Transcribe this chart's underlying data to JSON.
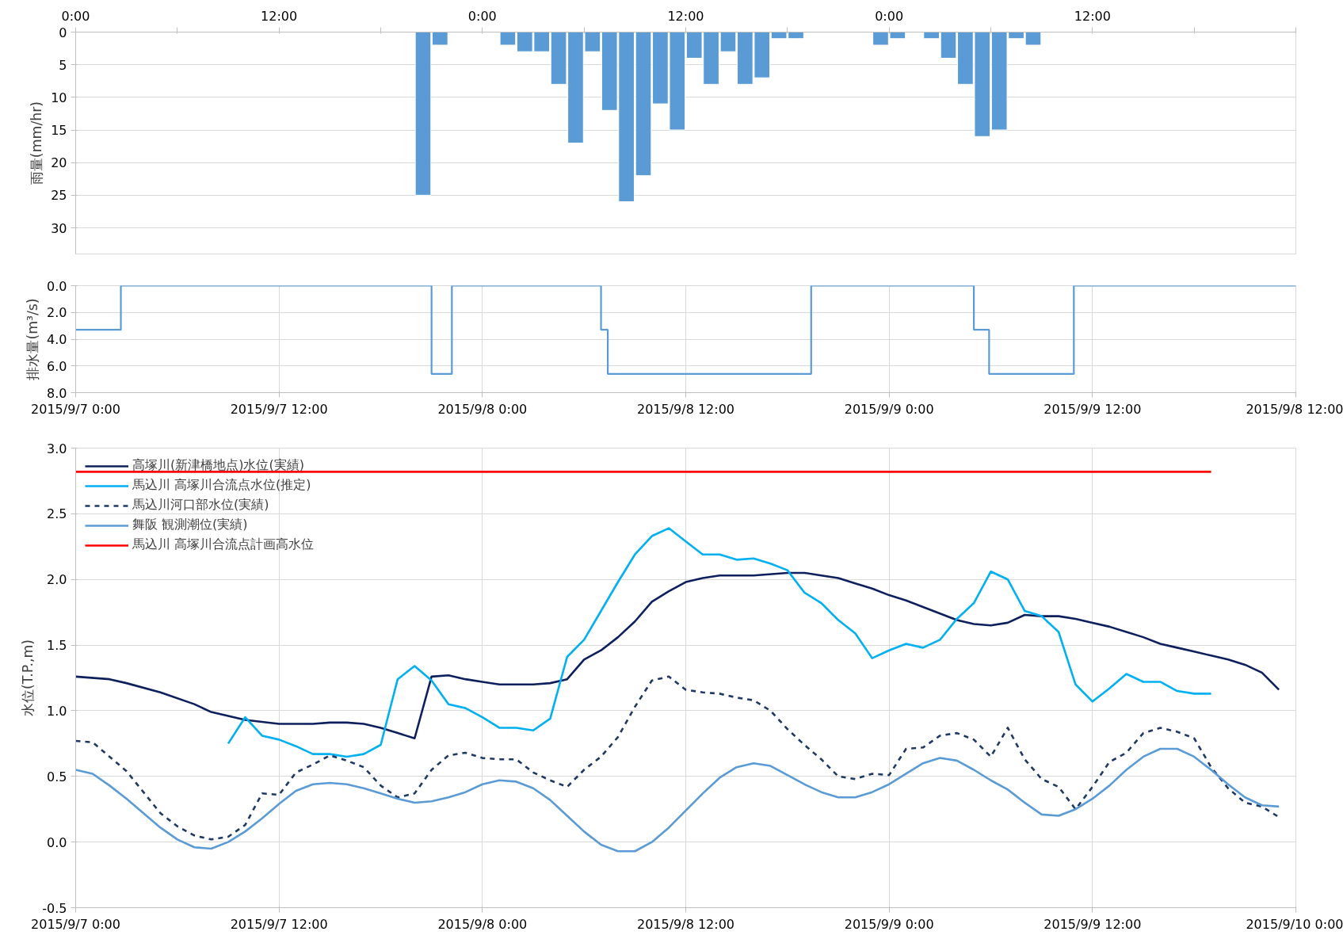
{
  "chart_data": [
    {
      "type": "bar",
      "ylabel": "雨量(mm/hr)",
      "color": "#5b9bd5",
      "tick_labels": "y",
      "xlim": [
        "2015-09-07T00:00",
        "2015-09-10T00:00"
      ],
      "x": [
        "2015-09-07T20:30",
        "2015-09-07T21:30",
        "2015-09-08T01:30",
        "2015-09-08T02:30",
        "2015-09-08T03:30",
        "2015-09-08T04:30",
        "2015-09-08T05:30",
        "2015-09-08T06:30",
        "2015-09-08T07:30",
        "2015-09-08T08:30",
        "2015-09-08T09:30",
        "2015-09-08T10:30",
        "2015-09-08T11:30",
        "2015-09-08T12:30",
        "2015-09-08T13:30",
        "2015-09-08T14:30",
        "2015-09-08T15:30",
        "2015-09-08T16:30",
        "2015-09-08T17:30",
        "2015-09-08T18:30",
        "2015-09-08T23:30",
        "2015-09-09T00:30",
        "2015-09-09T02:30",
        "2015-09-09T03:30",
        "2015-09-09T04:30",
        "2015-09-09T05:30",
        "2015-09-09T06:30",
        "2015-09-09T07:30",
        "2015-09-09T08:30"
      ],
      "values": [
        25,
        2,
        2,
        3,
        3,
        8,
        17,
        3,
        12,
        26,
        22,
        11,
        15,
        4,
        8,
        3,
        8,
        7,
        1,
        1,
        2,
        1,
        1,
        4,
        8,
        16,
        15,
        1,
        2
      ],
      "x2lim": [
        "2015-09-07T00:00",
        "2015-09-10T00:00"
      ],
      "ylim": [
        34,
        0
      ],
      "yticks": [
        0,
        5,
        10,
        15,
        20,
        25,
        30
      ],
      "x2ticks": [
        {
          "value": "2015-09-07T00:00",
          "label": "0:00"
        },
        {
          "value": "2015-09-07T06:00",
          "label": null
        },
        {
          "value": "2015-09-07T12:00",
          "label": "12:00"
        },
        {
          "value": "2015-09-07T18:00",
          "label": null
        },
        {
          "value": "2015-09-08T00:00",
          "label": "0:00"
        },
        {
          "value": "2015-09-08T06:00",
          "label": null
        },
        {
          "value": "2015-09-08T12:00",
          "label": "12:00"
        },
        {
          "value": "2015-09-08T18:00",
          "label": null
        },
        {
          "value": "2015-09-09T00:00",
          "label": "0:00"
        },
        {
          "value": "2015-09-09T06:00",
          "label": null
        },
        {
          "value": "2015-09-09T12:00",
          "label": "12:00"
        },
        {
          "value": "2015-09-09T18:00",
          "label": null
        },
        {
          "value": "2015-09-10T00:00",
          "label": null
        }
      ],
      "grid": "y"
    },
    {
      "type": "step",
      "ylabel": "排水量(m³/s)",
      "color": "#5b9bd5",
      "x": [
        "2015-09-07T00:00",
        "2015-09-07T02:40",
        "2015-09-07T21:00",
        "2015-09-07T22:12",
        "2015-09-08T07:00",
        "2015-09-08T07:24",
        "2015-09-08T19:24",
        "2015-09-09T05:00",
        "2015-09-09T05:54",
        "2015-09-09T10:54",
        "2015-09-10T00:00"
      ],
      "values": [
        3.3,
        0,
        6.6,
        0,
        3.3,
        6.6,
        0,
        3.3,
        6.6,
        0,
        0
      ],
      "xlim": [
        "2015-09-07T00:00",
        "2015-09-10T00:00"
      ],
      "ylim": [
        8,
        0
      ],
      "yticks": [
        {
          "value": 0,
          "label": "0.0"
        },
        {
          "value": 2,
          "label": "2.0"
        },
        {
          "value": 4,
          "label": "4.0"
        },
        {
          "value": 6,
          "label": "6.0"
        },
        {
          "value": 8,
          "label": "8.0"
        }
      ],
      "xticks": [
        {
          "value": "2015-09-07T00:00",
          "label": "2015/9/7 0:00"
        },
        {
          "value": "2015-09-07T12:00",
          "label": "2015/9/7 12:00"
        },
        {
          "value": "2015-09-08T00:00",
          "label": "2015/9/8 0:00"
        },
        {
          "value": "2015-09-08T12:00",
          "label": "2015/9/8 12:00"
        },
        {
          "value": "2015-09-09T00:00",
          "label": "2015/9/9 0:00"
        },
        {
          "value": "2015-09-09T12:00",
          "label": "2015/9/9 12:00"
        },
        {
          "value": "2015-09-10T00:00",
          "label": "2015/9/8 12:00"
        }
      ],
      "grid": true
    },
    {
      "type": "line",
      "ylabel": "水位(T.P.,m)",
      "xlim": [
        "2015-09-07T00:00",
        "2015-09-10T00:00"
      ],
      "ylim": [
        -0.5,
        3.0
      ],
      "yticks": [
        {
          "value": -0.5,
          "label": "-0.5"
        },
        {
          "value": 0,
          "label": "0.0"
        },
        {
          "value": 0.5,
          "label": "0.5"
        },
        {
          "value": 1,
          "label": "1.0"
        },
        {
          "value": 1.5,
          "label": "1.5"
        },
        {
          "value": 2,
          "label": "2.0"
        },
        {
          "value": 2.5,
          "label": "2.5"
        },
        {
          "value": 3,
          "label": "3.0"
        }
      ],
      "xticks": [
        {
          "value": "2015-09-07T00:00",
          "label": "2015/9/7 0:00"
        },
        {
          "value": "2015-09-07T12:00",
          "label": "2015/9/7 12:00"
        },
        {
          "value": "2015-09-08T00:00",
          "label": "2015/9/8 0:00"
        },
        {
          "value": "2015-09-08T12:00",
          "label": "2015/9/8 12:00"
        },
        {
          "value": "2015-09-09T00:00",
          "label": "2015/9/9 0:00"
        },
        {
          "value": "2015-09-09T12:00",
          "label": "2015/9/9 12:00"
        },
        {
          "value": "2015-09-10T00:00",
          "label": "2015/9/10 0:00"
        }
      ],
      "grid": true,
      "legend": "top left",
      "series": [
        {
          "name": "高塚川(新津橋地点)水位(実績)",
          "color": "#0d1f5c",
          "x": [
            "2015-09-07T00:00",
            "2015-09-07T02:00",
            "2015-09-07T03:00",
            "2015-09-07T05:00",
            "2015-09-07T07:00",
            "2015-09-07T08:00",
            "2015-09-07T10:00",
            "2015-09-07T12:00",
            "2015-09-07T14:00",
            "2015-09-07T15:00",
            "2015-09-07T16:00",
            "2015-09-07T17:00",
            "2015-09-07T18:00",
            "2015-09-07T19:00",
            "2015-09-07T20:00",
            "2015-09-07T21:00",
            "2015-09-07T22:00",
            "2015-09-07T23:00",
            "2015-09-08T00:00",
            "2015-09-08T01:00",
            "2015-09-08T03:00",
            "2015-09-08T04:00",
            "2015-09-08T05:00",
            "2015-09-08T06:00",
            "2015-09-08T07:00",
            "2015-09-08T08:00",
            "2015-09-08T09:00",
            "2015-09-08T10:00",
            "2015-09-08T11:00",
            "2015-09-08T12:00",
            "2015-09-08T13:00",
            "2015-09-08T14:00",
            "2015-09-08T16:00",
            "2015-09-08T18:00",
            "2015-09-08T19:00",
            "2015-09-08T20:00",
            "2015-09-08T21:00",
            "2015-09-08T22:00",
            "2015-09-08T23:00",
            "2015-09-09T00:00",
            "2015-09-09T01:00",
            "2015-09-09T02:00",
            "2015-09-09T03:00",
            "2015-09-09T04:00",
            "2015-09-09T05:00",
            "2015-09-09T06:00",
            "2015-09-09T07:00",
            "2015-09-09T08:00",
            "2015-09-09T09:00",
            "2015-09-09T10:00",
            "2015-09-09T11:00",
            "2015-09-09T12:00",
            "2015-09-09T13:00",
            "2015-09-09T14:00",
            "2015-09-09T15:00",
            "2015-09-09T16:00",
            "2015-09-09T17:00",
            "2015-09-09T18:00",
            "2015-09-09T19:00",
            "2015-09-09T20:00",
            "2015-09-09T21:00",
            "2015-09-09T22:00",
            "2015-09-09T23:00"
          ],
          "values": [
            1.26,
            1.24,
            1.21,
            1.14,
            1.05,
            0.99,
            0.93,
            0.9,
            0.9,
            0.91,
            0.91,
            0.9,
            0.87,
            0.83,
            0.79,
            1.26,
            1.27,
            1.24,
            1.22,
            1.2,
            1.2,
            1.21,
            1.24,
            1.39,
            1.46,
            1.56,
            1.68,
            1.83,
            1.91,
            1.98,
            2.01,
            2.03,
            2.03,
            2.05,
            2.05,
            2.03,
            2.01,
            1.97,
            1.93,
            1.88,
            1.84,
            1.79,
            1.74,
            1.69,
            1.66,
            1.65,
            1.67,
            1.73,
            1.72,
            1.72,
            1.7,
            1.67,
            1.64,
            1.6,
            1.56,
            1.51,
            1.48,
            1.45,
            1.42,
            1.39,
            1.35,
            1.29,
            1.16
          ]
        },
        {
          "name": "馬込川 高塚川合流点水位(推定)",
          "color": "#00b0f0",
          "x": [
            "2015-09-07T09:00",
            "2015-09-07T10:00",
            "2015-09-07T11:00",
            "2015-09-07T12:00",
            "2015-09-07T13:00",
            "2015-09-07T14:00",
            "2015-09-07T15:00",
            "2015-09-07T16:00",
            "2015-09-07T17:00",
            "2015-09-07T18:00",
            "2015-09-07T19:00",
            "2015-09-07T20:00",
            "2015-09-07T21:00",
            "2015-09-07T22:00",
            "2015-09-07T23:00",
            "2015-09-08T00:00",
            "2015-09-08T01:00",
            "2015-09-08T02:00",
            "2015-09-08T03:00",
            "2015-09-08T04:00",
            "2015-09-08T05:00",
            "2015-09-08T06:00",
            "2015-09-08T07:00",
            "2015-09-08T08:00",
            "2015-09-08T09:00",
            "2015-09-08T10:00",
            "2015-09-08T11:00",
            "2015-09-08T12:00",
            "2015-09-08T13:00",
            "2015-09-08T14:00",
            "2015-09-08T15:00",
            "2015-09-08T16:00",
            "2015-09-08T17:00",
            "2015-09-08T18:00",
            "2015-09-08T19:00",
            "2015-09-08T20:00",
            "2015-09-08T21:00",
            "2015-09-08T22:00",
            "2015-09-08T23:00",
            "2015-09-09T00:00",
            "2015-09-09T01:00",
            "2015-09-09T02:00",
            "2015-09-09T03:00",
            "2015-09-09T04:00",
            "2015-09-09T05:00",
            "2015-09-09T06:00",
            "2015-09-09T07:00",
            "2015-09-09T08:00",
            "2015-09-09T09:00",
            "2015-09-09T10:00",
            "2015-09-09T11:00",
            "2015-09-09T12:00",
            "2015-09-09T13:00",
            "2015-09-09T14:00",
            "2015-09-09T15:00",
            "2015-09-09T16:00",
            "2015-09-09T17:00",
            "2015-09-09T18:00",
            "2015-09-09T19:00"
          ],
          "values": [
            0.75,
            0.95,
            0.81,
            0.78,
            0.73,
            0.67,
            0.67,
            0.65,
            0.67,
            0.74,
            1.24,
            1.34,
            1.23,
            1.05,
            1.02,
            0.95,
            0.87,
            0.87,
            0.85,
            0.94,
            1.41,
            1.54,
            1.76,
            1.98,
            2.19,
            2.33,
            2.39,
            2.29,
            2.19,
            2.19,
            2.15,
            2.16,
            2.12,
            2.07,
            1.9,
            1.82,
            1.69,
            1.59,
            1.4,
            1.46,
            1.51,
            1.48,
            1.54,
            1.7,
            1.82,
            2.06,
            2.0,
            1.76,
            1.72,
            1.6,
            1.2,
            1.07,
            1.17,
            1.28,
            1.22,
            1.22,
            1.15,
            1.13,
            1.13
          ]
        },
        {
          "name": "馬込川河口部水位(実績)",
          "color": "#1f3864",
          "line_style": "dashed",
          "x": [
            "2015-09-07T00:00",
            "2015-09-07T01:00",
            "2015-09-07T02:00",
            "2015-09-07T03:00",
            "2015-09-07T04:00",
            "2015-09-07T05:00",
            "2015-09-07T06:00",
            "2015-09-07T07:00",
            "2015-09-07T08:00",
            "2015-09-07T09:00",
            "2015-09-07T10:00",
            "2015-09-07T11:00",
            "2015-09-07T12:00",
            "2015-09-07T13:00",
            "2015-09-07T14:00",
            "2015-09-07T15:00",
            "2015-09-07T16:00",
            "2015-09-07T17:00",
            "2015-09-07T18:00",
            "2015-09-07T19:00",
            "2015-09-07T20:00",
            "2015-09-07T21:00",
            "2015-09-07T22:00",
            "2015-09-07T23:00",
            "2015-09-08T00:00",
            "2015-09-08T01:00",
            "2015-09-08T02:00",
            "2015-09-08T03:00",
            "2015-09-08T04:00",
            "2015-09-08T05:00",
            "2015-09-08T06:00",
            "2015-09-08T07:00",
            "2015-09-08T08:00",
            "2015-09-08T09:00",
            "2015-09-08T10:00",
            "2015-09-08T11:00",
            "2015-09-08T12:00",
            "2015-09-08T13:00",
            "2015-09-08T14:00",
            "2015-09-08T15:00",
            "2015-09-08T16:00",
            "2015-09-08T17:00",
            "2015-09-08T18:00",
            "2015-09-08T19:00",
            "2015-09-08T20:00",
            "2015-09-08T21:00",
            "2015-09-08T22:00",
            "2015-09-08T23:00",
            "2015-09-09T00:00",
            "2015-09-09T01:00",
            "2015-09-09T02:00",
            "2015-09-09T03:00",
            "2015-09-09T04:00",
            "2015-09-09T05:00",
            "2015-09-09T06:00",
            "2015-09-09T07:00",
            "2015-09-09T08:00",
            "2015-09-09T09:00",
            "2015-09-09T10:00",
            "2015-09-09T11:00",
            "2015-09-09T12:00",
            "2015-09-09T13:00",
            "2015-09-09T14:00",
            "2015-09-09T15:00",
            "2015-09-09T16:00",
            "2015-09-09T17:00",
            "2015-09-09T18:00",
            "2015-09-09T19:00",
            "2015-09-09T20:00",
            "2015-09-09T21:00",
            "2015-09-09T22:00",
            "2015-09-09T23:00"
          ],
          "values": [
            0.77,
            0.76,
            0.65,
            0.54,
            0.38,
            0.22,
            0.12,
            0.05,
            0.02,
            0.04,
            0.13,
            0.37,
            0.36,
            0.53,
            0.59,
            0.66,
            0.62,
            0.57,
            0.43,
            0.34,
            0.37,
            0.55,
            0.66,
            0.68,
            0.64,
            0.63,
            0.63,
            0.53,
            0.47,
            0.42,
            0.55,
            0.65,
            0.8,
            1.03,
            1.23,
            1.26,
            1.16,
            1.14,
            1.13,
            1.1,
            1.08,
            1.0,
            0.86,
            0.74,
            0.63,
            0.5,
            0.48,
            0.52,
            0.51,
            0.71,
            0.72,
            0.81,
            0.83,
            0.78,
            0.65,
            0.87,
            0.63,
            0.48,
            0.42,
            0.25,
            0.42,
            0.61,
            0.68,
            0.83,
            0.87,
            0.84,
            0.79,
            0.57,
            0.41,
            0.3,
            0.27,
            0.19
          ]
        },
        {
          "name": "舞阪 観測潮位(実績)",
          "color": "#5b9bd5",
          "x": [
            "2015-09-07T00:00",
            "2015-09-07T01:00",
            "2015-09-07T02:00",
            "2015-09-07T03:00",
            "2015-09-07T04:00",
            "2015-09-07T05:00",
            "2015-09-07T06:00",
            "2015-09-07T07:00",
            "2015-09-07T08:00",
            "2015-09-07T09:00",
            "2015-09-07T10:00",
            "2015-09-07T11:00",
            "2015-09-07T12:00",
            "2015-09-07T13:00",
            "2015-09-07T14:00",
            "2015-09-07T15:00",
            "2015-09-07T16:00",
            "2015-09-07T17:00",
            "2015-09-07T18:00",
            "2015-09-07T19:00",
            "2015-09-07T20:00",
            "2015-09-07T21:00",
            "2015-09-07T22:00",
            "2015-09-07T23:00",
            "2015-09-08T00:00",
            "2015-09-08T01:00",
            "2015-09-08T02:00",
            "2015-09-08T03:00",
            "2015-09-08T04:00",
            "2015-09-08T05:00",
            "2015-09-08T06:00",
            "2015-09-08T07:00",
            "2015-09-08T08:00",
            "2015-09-08T09:00",
            "2015-09-08T10:00",
            "2015-09-08T11:00",
            "2015-09-08T12:00",
            "2015-09-08T13:00",
            "2015-09-08T14:00",
            "2015-09-08T15:00",
            "2015-09-08T16:00",
            "2015-09-08T17:00",
            "2015-09-08T18:00",
            "2015-09-08T19:00",
            "2015-09-08T20:00",
            "2015-09-08T21:00",
            "2015-09-08T22:00",
            "2015-09-08T23:00",
            "2015-09-09T00:00",
            "2015-09-09T01:00",
            "2015-09-09T02:00",
            "2015-09-09T03:00",
            "2015-09-09T04:00",
            "2015-09-09T05:00",
            "2015-09-09T06:00",
            "2015-09-09T07:00",
            "2015-09-09T08:00",
            "2015-09-09T09:00",
            "2015-09-09T10:00",
            "2015-09-09T11:00",
            "2015-09-09T12:00",
            "2015-09-09T13:00",
            "2015-09-09T14:00",
            "2015-09-09T15:00",
            "2015-09-09T16:00",
            "2015-09-09T17:00",
            "2015-09-09T18:00",
            "2015-09-09T19:00",
            "2015-09-09T20:00",
            "2015-09-09T21:00",
            "2015-09-09T22:00",
            "2015-09-09T23:00"
          ],
          "values": [
            0.55,
            0.52,
            0.43,
            0.33,
            0.22,
            0.11,
            0.02,
            -0.04,
            -0.05,
            0.0,
            0.08,
            0.18,
            0.29,
            0.39,
            0.44,
            0.45,
            0.44,
            0.41,
            0.37,
            0.33,
            0.3,
            0.31,
            0.34,
            0.38,
            0.44,
            0.47,
            0.46,
            0.41,
            0.32,
            0.2,
            0.08,
            -0.02,
            -0.07,
            -0.07,
            0.0,
            0.11,
            0.24,
            0.37,
            0.49,
            0.57,
            0.6,
            0.58,
            0.51,
            0.44,
            0.38,
            0.34,
            0.34,
            0.38,
            0.44,
            0.52,
            0.6,
            0.64,
            0.62,
            0.55,
            0.47,
            0.4,
            0.3,
            0.21,
            0.2,
            0.25,
            0.33,
            0.43,
            0.55,
            0.65,
            0.71,
            0.71,
            0.65,
            0.55,
            0.44,
            0.34,
            0.28,
            0.27
          ]
        },
        {
          "name": "馬込川 高塚川合流点計画高水位",
          "color": "#ff0000",
          "x": [
            "2015-09-07T00:00",
            "2015-09-09T19:00"
          ],
          "values": [
            2.82,
            2.82
          ]
        }
      ]
    }
  ]
}
